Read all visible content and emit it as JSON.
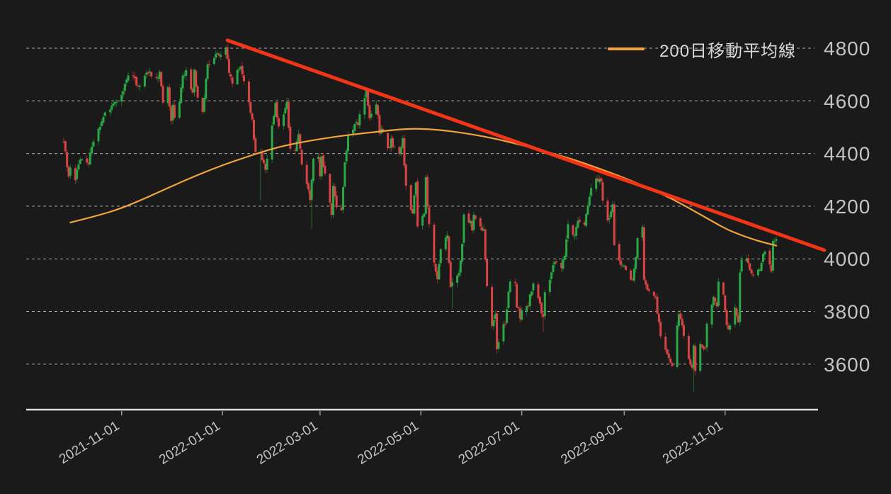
{
  "chart_data": {
    "type": "candlestick",
    "title": "",
    "legend": [
      {
        "label": "200日移動平均線",
        "series": "ma200",
        "color": "#f0a43c"
      }
    ],
    "x_axis": {
      "start_date": "2021-09-27",
      "tick_labels": [
        "2021-11-01",
        "2022-01-01",
        "2022-03-01",
        "2022-05-01",
        "2022-07-01",
        "2022-09-01",
        "2022-11-01"
      ],
      "tick_days": [
        35,
        96,
        155,
        216,
        277,
        339,
        400
      ],
      "label_rotation_deg": -32
    },
    "y_axis": {
      "tick_labels": [
        "4800",
        "4600",
        "4400",
        "4200",
        "4000",
        "3800",
        "3600"
      ],
      "tick_values": [
        4800,
        4600,
        4400,
        4200,
        4000,
        3800,
        3600
      ],
      "grid": "dashed",
      "side": "right"
    },
    "price_anchors": [
      [
        0,
        4443
      ],
      [
        2,
        4360
      ],
      [
        3,
        4307
      ],
      [
        4,
        4357
      ],
      [
        7,
        4300
      ],
      [
        9,
        4363
      ],
      [
        11,
        4391
      ],
      [
        15,
        4351
      ],
      [
        17,
        4438
      ],
      [
        21,
        4486
      ],
      [
        24,
        4550
      ],
      [
        29,
        4575
      ],
      [
        31,
        4596
      ],
      [
        35,
        4614
      ],
      [
        39,
        4698
      ],
      [
        43,
        4685
      ],
      [
        44,
        4647
      ],
      [
        50,
        4701
      ],
      [
        52,
        4705
      ],
      [
        56,
        4683
      ],
      [
        58,
        4701
      ],
      [
        60,
        4595
      ],
      [
        63,
        4655
      ],
      [
        64,
        4567
      ],
      [
        65,
        4513
      ],
      [
        66,
        4577
      ],
      [
        67,
        4538
      ],
      [
        70,
        4592
      ],
      [
        72,
        4701
      ],
      [
        74,
        4712
      ],
      [
        78,
        4634
      ],
      [
        79,
        4710
      ],
      [
        81,
        4621
      ],
      [
        84,
        4568
      ],
      [
        87,
        4726
      ],
      [
        92,
        4786
      ],
      [
        95,
        4766
      ],
      [
        98,
        4797
      ],
      [
        100,
        4701
      ],
      [
        102,
        4677
      ],
      [
        107,
        4726
      ],
      [
        109,
        4663
      ],
      [
        114,
        4533
      ],
      [
        116,
        4398
      ],
      [
        119,
        4410
      ],
      [
        122,
        4326
      ],
      [
        126,
        4516
      ],
      [
        128,
        4589
      ],
      [
        130,
        4501
      ],
      [
        135,
        4587
      ],
      [
        137,
        4419
      ],
      [
        140,
        4401
      ],
      [
        142,
        4475
      ],
      [
        144,
        4349
      ],
      [
        149,
        4226
      ],
      [
        150,
        4288
      ],
      [
        151,
        4385
      ],
      [
        154,
        4374
      ],
      [
        155,
        4306
      ],
      [
        156,
        4387
      ],
      [
        158,
        4329
      ],
      [
        162,
        4171
      ],
      [
        163,
        4278
      ],
      [
        165,
        4204
      ],
      [
        168,
        4173
      ],
      [
        170,
        4358
      ],
      [
        172,
        4463
      ],
      [
        176,
        4511
      ],
      [
        178,
        4520
      ],
      [
        183,
        4632
      ],
      [
        185,
        4530
      ],
      [
        189,
        4583
      ],
      [
        191,
        4481
      ],
      [
        193,
        4488
      ],
      [
        196,
        4413
      ],
      [
        198,
        4447
      ],
      [
        203,
        4391
      ],
      [
        205,
        4459
      ],
      [
        207,
        4272
      ],
      [
        211,
        4175
      ],
      [
        213,
        4287
      ],
      [
        214,
        4132
      ],
      [
        218,
        4175
      ],
      [
        219,
        4300
      ],
      [
        221,
        4123
      ],
      [
        224,
        3991
      ],
      [
        226,
        3935
      ],
      [
        228,
        4024
      ],
      [
        232,
        4089
      ],
      [
        234,
        3900
      ],
      [
        235,
        3901
      ],
      [
        239,
        3941
      ],
      [
        241,
        4058
      ],
      [
        242,
        4158
      ],
      [
        246,
        4132
      ],
      [
        247,
        4101
      ],
      [
        248,
        4177
      ],
      [
        252,
        4121
      ],
      [
        254,
        4116
      ],
      [
        256,
        3901
      ],
      [
        259,
        3750
      ],
      [
        261,
        3790
      ],
      [
        262,
        3667
      ],
      [
        267,
        3765
      ],
      [
        270,
        3912
      ],
      [
        273,
        3900
      ],
      [
        274,
        3821
      ],
      [
        276,
        3785
      ],
      [
        281,
        3831
      ],
      [
        284,
        3899
      ],
      [
        288,
        3819
      ],
      [
        290,
        3790
      ],
      [
        291,
        3863
      ],
      [
        295,
        3937
      ],
      [
        297,
        3999
      ],
      [
        301,
        3967
      ],
      [
        303,
        4023
      ],
      [
        305,
        4130
      ],
      [
        309,
        4091
      ],
      [
        311,
        4152
      ],
      [
        315,
        4140
      ],
      [
        317,
        4210
      ],
      [
        319,
        4280
      ],
      [
        323,
        4305
      ],
      [
        325,
        4283
      ],
      [
        326,
        4228
      ],
      [
        329,
        4138
      ],
      [
        332,
        4199
      ],
      [
        333,
        4058
      ],
      [
        337,
        3986
      ],
      [
        339,
        3967
      ],
      [
        344,
        3908
      ],
      [
        347,
        4067
      ],
      [
        350,
        4110
      ],
      [
        351,
        3933
      ],
      [
        354,
        3873
      ],
      [
        358,
        3856
      ],
      [
        361,
        3693
      ],
      [
        365,
        3647
      ],
      [
        368,
        3586
      ],
      [
        372,
        3791
      ],
      [
        374,
        3744
      ],
      [
        378,
        3612
      ],
      [
        380,
        3577
      ],
      [
        381,
        3670
      ],
      [
        382,
        3583
      ],
      [
        385,
        3678
      ],
      [
        388,
        3666
      ],
      [
        389,
        3753
      ],
      [
        393,
        3859
      ],
      [
        395,
        3807
      ],
      [
        396,
        3901
      ],
      [
        399,
        3872
      ],
      [
        401,
        3760
      ],
      [
        402,
        3720
      ],
      [
        406,
        3807
      ],
      [
        408,
        3749
      ],
      [
        409,
        3956
      ],
      [
        410,
        3993
      ],
      [
        414,
        3992
      ],
      [
        416,
        3947
      ],
      [
        420,
        3950
      ],
      [
        424,
        4026
      ],
      [
        428,
        3958
      ],
      [
        429,
        4080
      ],
      [
        430,
        4077
      ],
      [
        431,
        4072
      ]
    ],
    "wick_events": [
      {
        "day": 99,
        "high": 4818
      },
      {
        "day": 119,
        "low": 4223
      },
      {
        "day": 150,
        "low": 4115
      },
      {
        "day": 235,
        "low": 3810
      },
      {
        "day": 262,
        "low": 3639
      },
      {
        "day": 290,
        "low": 3722
      },
      {
        "day": 381,
        "low": 3495
      }
    ],
    "ma200_anchors": [
      [
        4,
        4138
      ],
      [
        20,
        4163
      ],
      [
        35,
        4192
      ],
      [
        50,
        4232
      ],
      [
        65,
        4275
      ],
      [
        80,
        4316
      ],
      [
        96,
        4356
      ],
      [
        112,
        4390
      ],
      [
        127,
        4420
      ],
      [
        141,
        4440
      ],
      [
        155,
        4455
      ],
      [
        170,
        4469
      ],
      [
        186,
        4480
      ],
      [
        200,
        4490
      ],
      [
        212,
        4495
      ],
      [
        228,
        4490
      ],
      [
        247,
        4473
      ],
      [
        262,
        4455
      ],
      [
        277,
        4432
      ],
      [
        292,
        4407
      ],
      [
        308,
        4378
      ],
      [
        323,
        4345
      ],
      [
        339,
        4308
      ],
      [
        354,
        4268
      ],
      [
        369,
        4225
      ],
      [
        384,
        4172
      ],
      [
        400,
        4115
      ],
      [
        408,
        4094
      ],
      [
        415,
        4078
      ],
      [
        423,
        4063
      ],
      [
        431,
        4050
      ]
    ],
    "trendline": {
      "day_from": 99,
      "value_from": 4830,
      "day_to": 460,
      "value_to": 4033,
      "color": "#f23517"
    },
    "colors": {
      "background": "#1a1a1a",
      "grid": "#cdcdcd",
      "axis": "#dcdcdc",
      "tick": "#9a9a9a",
      "axis_label": "#c4c4c4",
      "legend_text": "#d8d8d8",
      "up_body": "#2aa845",
      "up_wick": "#1c6f30",
      "down_body": "#d84444",
      "down_wick": "#8e2c2c",
      "ma200": "#f0a43c",
      "trendline": "#f23517"
    }
  }
}
